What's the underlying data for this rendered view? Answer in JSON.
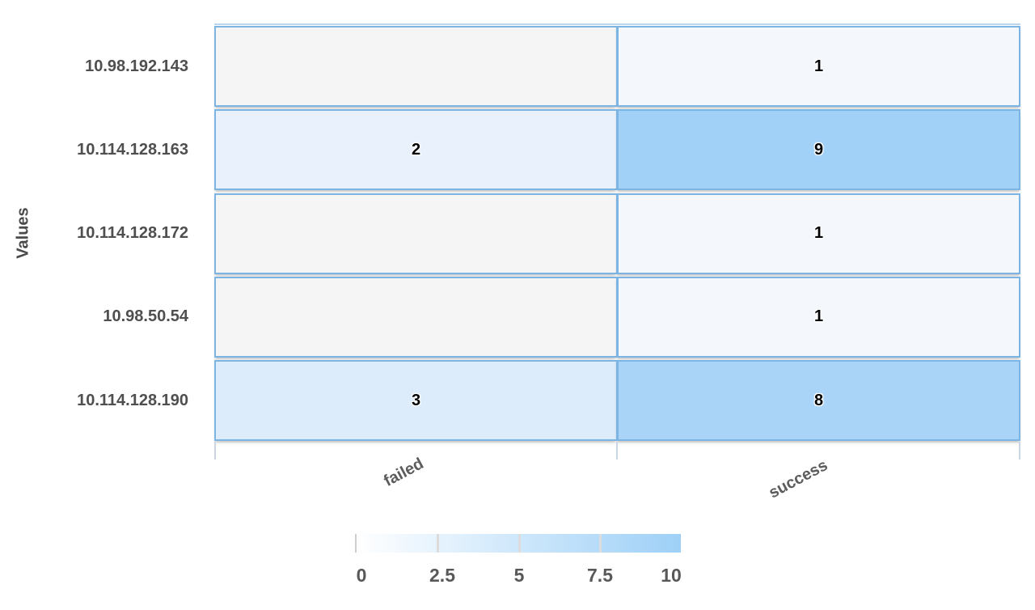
{
  "chart_data": {
    "type": "heatmap",
    "title": "",
    "ylabel": "Values",
    "x_categories": [
      "failed",
      "success"
    ],
    "y_categories": [
      "10.98.192.143",
      "10.114.128.163",
      "10.114.128.172",
      "10.98.50.54",
      "10.114.128.190"
    ],
    "values": [
      [
        null,
        1
      ],
      [
        2,
        9
      ],
      [
        null,
        1
      ],
      [
        null,
        1
      ],
      [
        3,
        8
      ]
    ],
    "color_scale": {
      "min": 0,
      "max": 10,
      "ticks": [
        "0",
        "2.5",
        "5",
        "7.5",
        "10"
      ],
      "start_color": "#ffffff",
      "end_color": "#9ed0f7",
      "empty_cell_color": "#f5f5f5",
      "cell_border_color": "#7cb4e3"
    },
    "legend_position": "bottom",
    "grid": false
  },
  "axis": {
    "ylabel": "Values",
    "x_labels": [
      "failed",
      "success"
    ]
  },
  "rows": [
    {
      "label": "10.98.192.143",
      "cells": [
        {
          "text": "",
          "bg": "#f5f5f5"
        },
        {
          "text": "1",
          "bg": "#f4f8fd"
        }
      ]
    },
    {
      "label": "10.114.128.163",
      "cells": [
        {
          "text": "2",
          "bg": "#e9f2fc"
        },
        {
          "text": "9",
          "bg": "#a2d1f7"
        }
      ]
    },
    {
      "label": "10.114.128.172",
      "cells": [
        {
          "text": "",
          "bg": "#f5f5f5"
        },
        {
          "text": "1",
          "bg": "#f4f8fd"
        }
      ]
    },
    {
      "label": "10.98.50.54",
      "cells": [
        {
          "text": "",
          "bg": "#f5f5f5"
        },
        {
          "text": "1",
          "bg": "#f4f8fd"
        }
      ]
    },
    {
      "label": "10.114.128.190",
      "cells": [
        {
          "text": "3",
          "bg": "#ddecfa"
        },
        {
          "text": "8",
          "bg": "#a9d4f8"
        }
      ]
    }
  ],
  "legend": {
    "ticks": [
      "0",
      "2.5",
      "5",
      "7.5",
      "10"
    ]
  }
}
